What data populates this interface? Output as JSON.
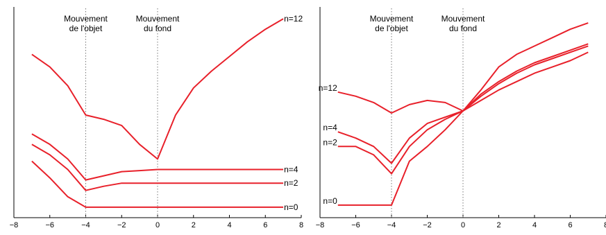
{
  "chart_data": [
    {
      "type": "line",
      "xlim": [
        -8,
        8
      ],
      "xticks": [
        -8,
        -6,
        -4,
        -2,
        0,
        2,
        4,
        6,
        8
      ],
      "yticks": [],
      "grid": false,
      "annotations": [
        {
          "x": -4,
          "lines": [
            "Mouvement",
            "de l'objet"
          ]
        },
        {
          "x": 0,
          "lines": [
            "Mouvement",
            "du fond"
          ]
        }
      ],
      "color": "#e8202a",
      "series": [
        {
          "name": "n=12",
          "label_position": "end",
          "x": [
            -7,
            -6,
            -5,
            -4,
            -3,
            -2,
            -1,
            0,
            1,
            2,
            3,
            4,
            5,
            6,
            7
          ],
          "y": [
            0.78,
            0.72,
            0.63,
            0.49,
            0.47,
            0.44,
            0.35,
            0.28,
            0.49,
            0.62,
            0.7,
            0.77,
            0.84,
            0.9,
            0.95
          ]
        },
        {
          "name": "n=4",
          "label_position": "end",
          "x": [
            -7,
            -6,
            -5,
            -4,
            -3,
            -2,
            -1,
            0,
            1,
            2,
            3,
            4,
            5,
            6,
            7
          ],
          "y": [
            0.4,
            0.35,
            0.28,
            0.18,
            0.2,
            0.22,
            0.225,
            0.23,
            0.23,
            0.23,
            0.23,
            0.23,
            0.23,
            0.23,
            0.23
          ]
        },
        {
          "name": "n=2",
          "label_position": "end",
          "x": [
            -7,
            -6,
            -5,
            -4,
            -3,
            -2,
            -1,
            0,
            1,
            2,
            3,
            4,
            5,
            6,
            7
          ],
          "y": [
            0.35,
            0.3,
            0.23,
            0.13,
            0.15,
            0.165,
            0.165,
            0.165,
            0.165,
            0.165,
            0.165,
            0.165,
            0.165,
            0.165,
            0.165
          ]
        },
        {
          "name": "n=0",
          "label_position": "end",
          "x": [
            -7,
            -6,
            -5,
            -4,
            -3,
            -2,
            -1,
            0,
            1,
            2,
            3,
            4,
            5,
            6,
            7
          ],
          "y": [
            0.27,
            0.19,
            0.1,
            0.05,
            0.05,
            0.05,
            0.05,
            0.05,
            0.05,
            0.05,
            0.05,
            0.05,
            0.05,
            0.05,
            0.05
          ]
        }
      ]
    },
    {
      "type": "line",
      "xlim": [
        -8,
        8
      ],
      "xticks": [
        -8,
        -6,
        -4,
        -2,
        0,
        2,
        4,
        6,
        8
      ],
      "yticks": [],
      "grid": false,
      "annotations": [
        {
          "x": -4,
          "lines": [
            "Mouvement",
            "de l'objet"
          ]
        },
        {
          "x": 0,
          "lines": [
            "Mouvement",
            "du fond"
          ]
        }
      ],
      "color": "#e8202a",
      "series": [
        {
          "name": "n=12",
          "label_position": "start",
          "x": [
            -7,
            -6,
            -5,
            -4,
            -3,
            -2,
            -1,
            0,
            1,
            2,
            3,
            4,
            5,
            6,
            7
          ],
          "y": [
            0.6,
            0.58,
            0.55,
            0.5,
            0.54,
            0.56,
            0.55,
            0.51,
            0.61,
            0.72,
            0.78,
            0.82,
            0.86,
            0.9,
            0.93
          ]
        },
        {
          "name": "n=4",
          "label_position": "start",
          "x": [
            -7,
            -6,
            -5,
            -4,
            -3,
            -2,
            -1,
            0,
            1,
            2,
            3,
            4,
            5,
            6,
            7
          ],
          "y": [
            0.41,
            0.38,
            0.34,
            0.26,
            0.38,
            0.45,
            0.48,
            0.51,
            0.59,
            0.65,
            0.7,
            0.74,
            0.77,
            0.8,
            0.83
          ]
        },
        {
          "name": "n=2",
          "label_position": "start",
          "x": [
            -7,
            -6,
            -5,
            -4,
            -3,
            -2,
            -1,
            0,
            1,
            2,
            3,
            4,
            5,
            6,
            7
          ],
          "y": [
            0.34,
            0.34,
            0.3,
            0.21,
            0.34,
            0.42,
            0.47,
            0.51,
            0.58,
            0.64,
            0.69,
            0.73,
            0.76,
            0.79,
            0.82
          ]
        },
        {
          "name": "n=0",
          "label_position": "start",
          "x": [
            -7,
            -6,
            -5,
            -4,
            -3,
            -2,
            -1,
            0,
            1,
            2,
            3,
            4,
            5,
            6,
            7
          ],
          "y": [
            0.06,
            0.06,
            0.06,
            0.06,
            0.27,
            0.34,
            0.42,
            0.51,
            0.56,
            0.61,
            0.65,
            0.69,
            0.72,
            0.75,
            0.79
          ]
        }
      ]
    }
  ]
}
